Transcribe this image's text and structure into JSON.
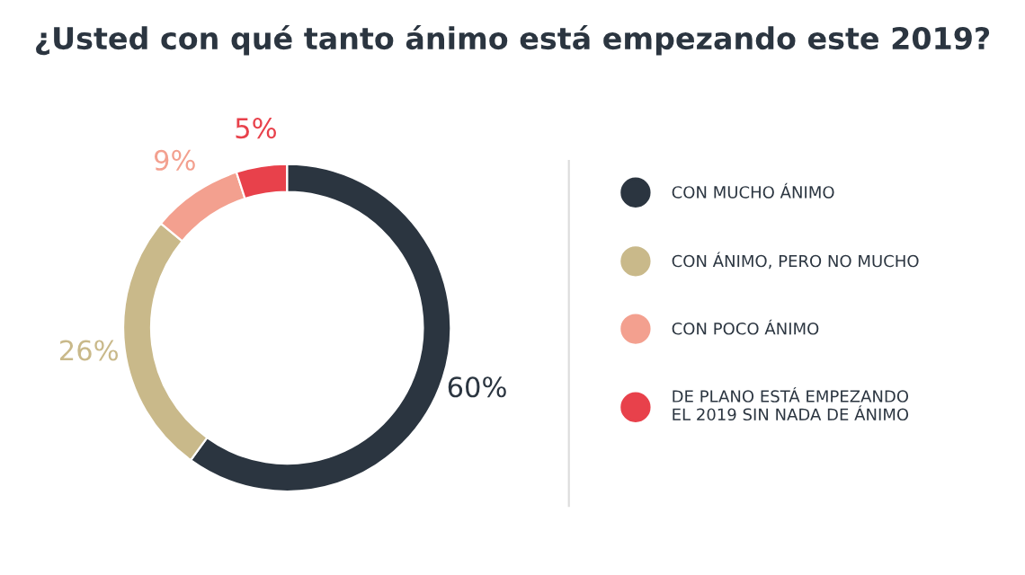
{
  "chart_data": {
    "type": "donut",
    "title": "¿Usted con qué tanto ánimo está empezando este 2019?",
    "categories": [
      "CON MUCHO ÁNIMO",
      "CON ÁNIMO, PERO NO MUCHO",
      "CON POCO ÁNIMO",
      "DE PLANO ESTÁ EMPEZANDO\nEL 2019 SIN NADA DE ÁNIMO"
    ],
    "values": [
      60,
      26,
      9,
      5
    ],
    "colors": [
      "#2b3540",
      "#c9b98a",
      "#f3a08f",
      "#e8414b"
    ],
    "value_labels": [
      "60%",
      "26%",
      "9%",
      "5%"
    ],
    "legend": "right"
  }
}
